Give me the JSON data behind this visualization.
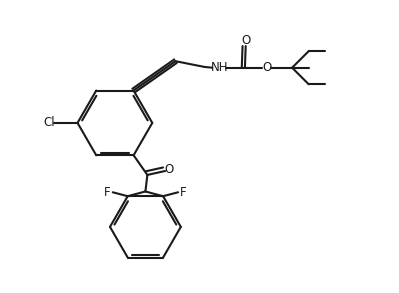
{
  "background_color": "#ffffff",
  "line_color": "#1a1a1a",
  "line_width": 1.5,
  "figure_size": [
    3.99,
    2.93
  ],
  "dpi": 100,
  "xlim": [
    0,
    10
  ],
  "ylim": [
    0,
    7.3
  ]
}
